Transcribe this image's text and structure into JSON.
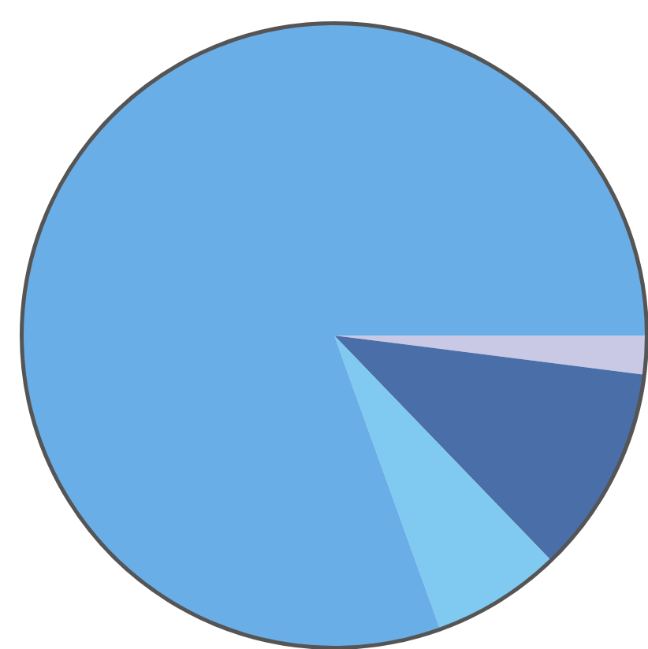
{
  "chart_data": {
    "type": "pie",
    "categories": [
      null,
      null,
      null,
      null
    ],
    "values": [
      2,
      10.8,
      6.7,
      80.5
    ],
    "colors": [
      "#c9c9e6",
      "#4a6ea8",
      "#80c9f0",
      "#6aaee8"
    ]
  }
}
